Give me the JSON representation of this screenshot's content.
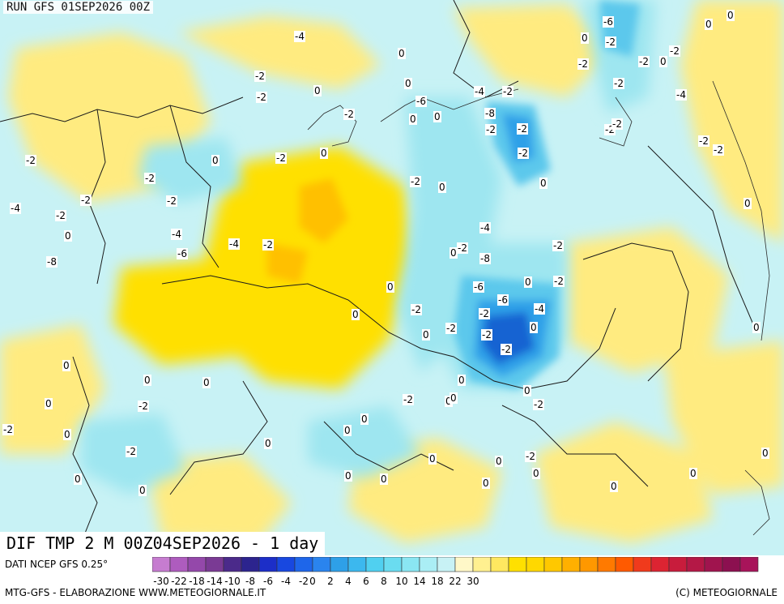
{
  "run_title": "RUN GFS 01SEP2026 00Z",
  "map_caption": "DIF TMP 2 M 00Z04SEP2026 - 1 day",
  "footer": {
    "data_source": "DATI NCEP GFS 0.25°",
    "credit_left": "MTG-GFS - ELABORAZIONE WWW.METEOGIORNALE.IT",
    "credit_right": "(C) METEOGIORNALE"
  },
  "colors": {
    "land_base": "#c8f2f5",
    "warm_light": "#ffeb80",
    "warm": "#ffe000",
    "warm_strong": "#ffc000",
    "cool_light": "#9ee6f0",
    "cool": "#5cc8ec",
    "cool_mid": "#2ea0e8",
    "cool_strong": "#1464d2",
    "border_line": "#1a1a1a"
  },
  "legend": {
    "colors": [
      "#c67cd0",
      "#ae5cbe",
      "#9448aa",
      "#7a3a94",
      "#4b2a8a",
      "#2c248e",
      "#1c2ec8",
      "#1848e0",
      "#1e66ea",
      "#2a84ee",
      "#2ea0e8",
      "#3cb8ee",
      "#50d0f0",
      "#6adcf0",
      "#8ae6f2",
      "#aaeef5",
      "#c8f2f5",
      "#fff8c8",
      "#fff090",
      "#ffe860",
      "#ffe000",
      "#ffd800",
      "#ffc800",
      "#ffb000",
      "#ff9800",
      "#ff7a00",
      "#ff5a00",
      "#f03a1c",
      "#dc2432",
      "#c81c3c",
      "#b41846",
      "#a0144e",
      "#8c1050",
      "#a8145a"
    ],
    "ticks": [
      "-30",
      "-22",
      "-18",
      "-14",
      "-10",
      "-8",
      "-6",
      "-4",
      "-2",
      "0",
      "2",
      "4",
      "6",
      "8",
      "10",
      "14",
      "18",
      "22",
      "30"
    ],
    "tick_index": [
      1,
      3,
      5,
      7,
      9,
      11,
      13,
      15,
      17,
      18,
      20,
      22,
      24,
      26,
      28,
      30,
      32,
      34,
      36
    ]
  },
  "contour_labels": [
    "-6",
    "0",
    "0",
    "0",
    "-2",
    "-4",
    "-2",
    "0",
    "-2",
    "-2",
    "0",
    "-2",
    "0",
    "0",
    "-4",
    "-2",
    "-2",
    "-4",
    "-2",
    "-6",
    "-2",
    "0",
    "0",
    "-8",
    "-2",
    "-2",
    "-2",
    "-2",
    "-2",
    "-2",
    "-2",
    "0",
    "-2",
    "-2",
    "0",
    "-2",
    "-2",
    "0",
    "0",
    "0",
    "-2",
    "-2",
    "-4",
    "-2",
    "0",
    "-4",
    "-4",
    "-2",
    "-4",
    "-2",
    "0",
    "-2",
    "-6",
    "-8",
    "-8",
    "-6",
    "0",
    "-2",
    "-6",
    "-4",
    "0",
    "0",
    "-2",
    "-2",
    "-2",
    "0",
    "0",
    "-2",
    "-2",
    "0",
    "0",
    "0",
    "0",
    "0",
    "0",
    "-2",
    "0",
    "0",
    "0",
    "-2",
    "-2",
    "-2",
    "0",
    "0",
    "0",
    "0",
    "-2",
    "-2",
    "0",
    "0",
    "0",
    "0",
    "0",
    "0",
    "0",
    "0",
    "0",
    "0",
    "0"
  ]
}
